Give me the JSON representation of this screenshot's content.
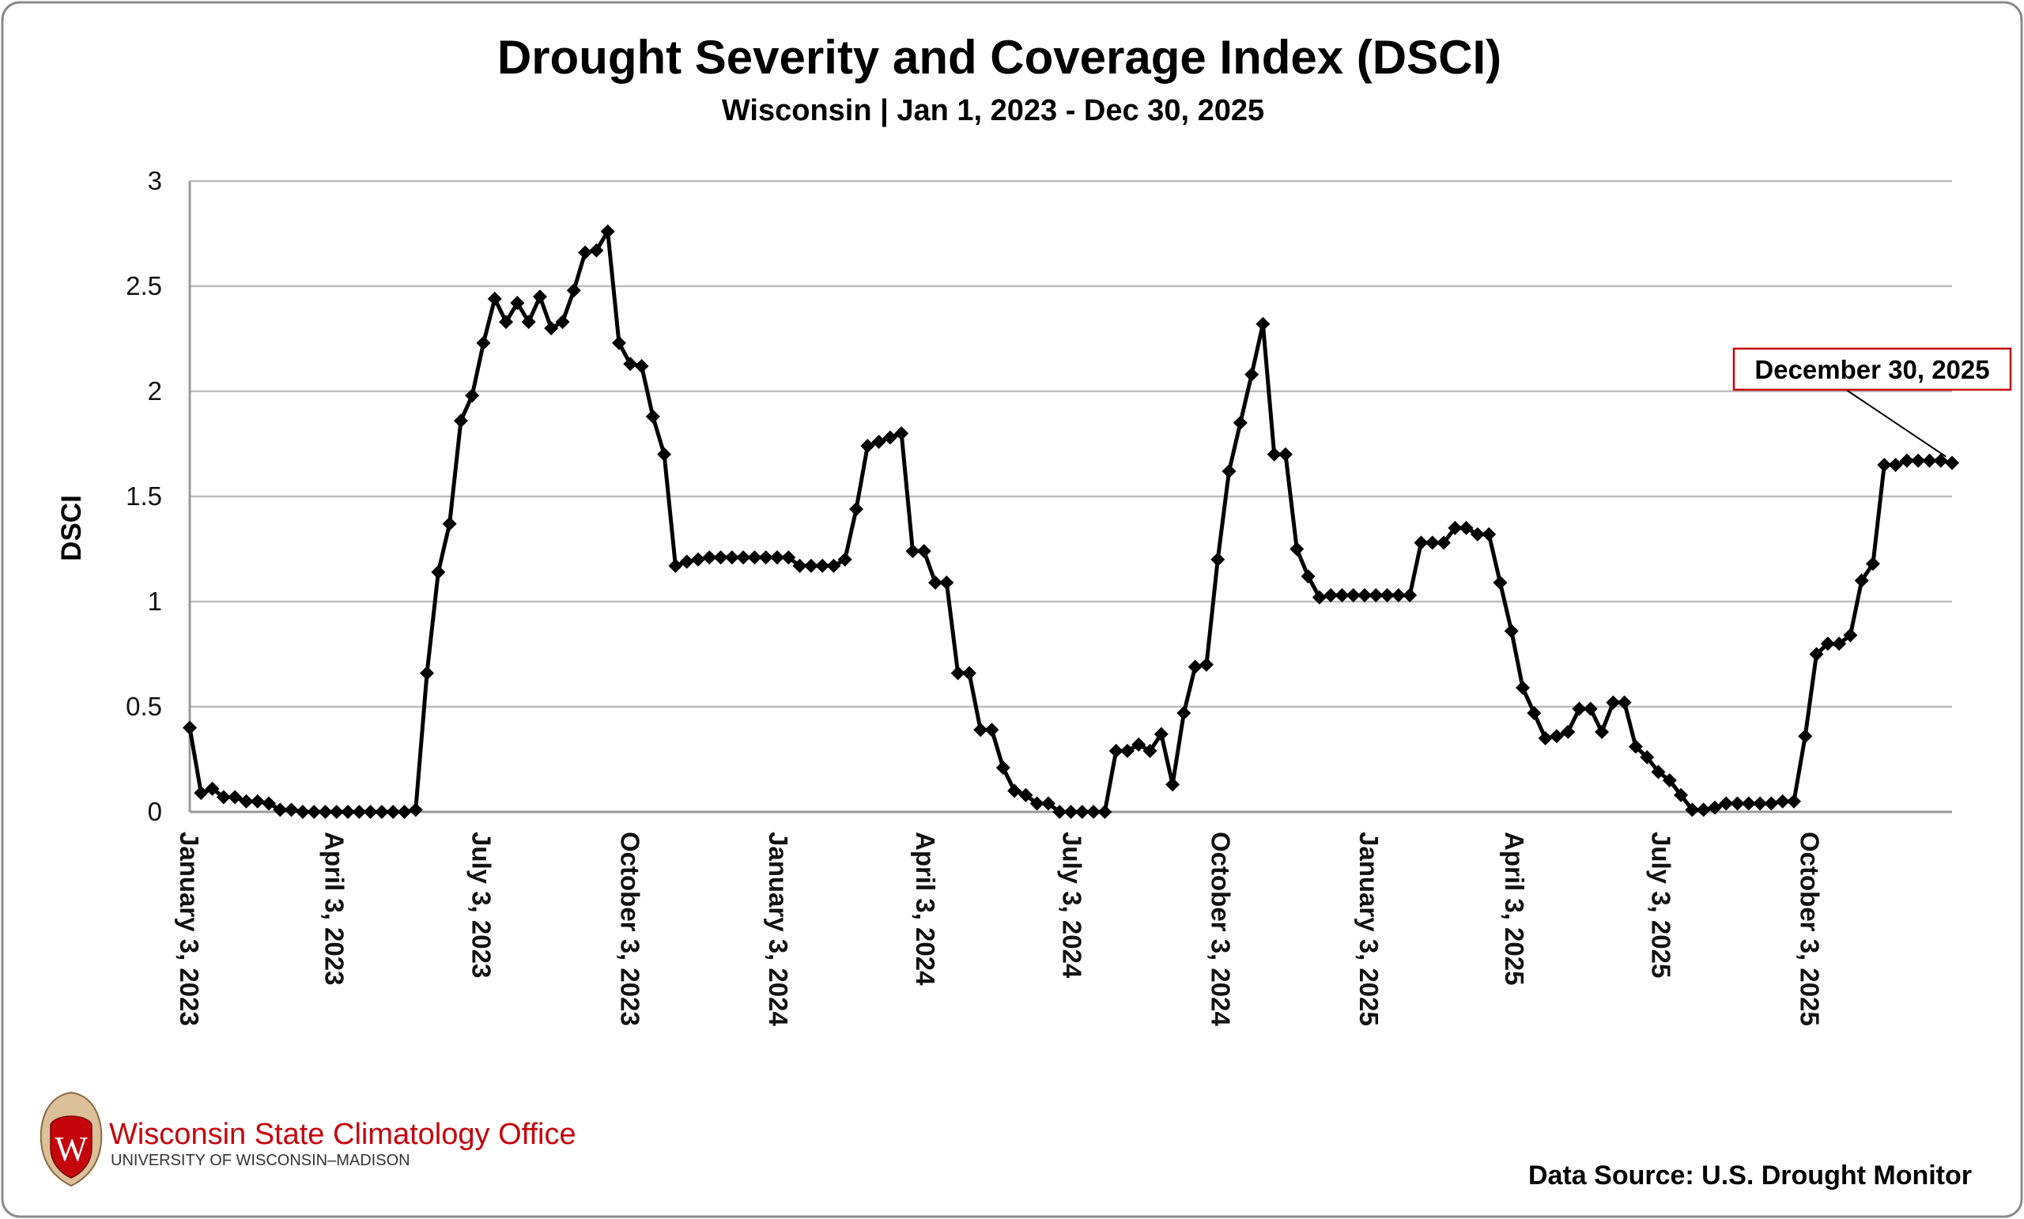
{
  "chart_data": {
    "type": "line",
    "title": "Drought Severity and Coverage Index (DSCI)",
    "subtitle": "Wisconsin | Jan 1, 2023 - Dec 30, 2025",
    "xlabel": "",
    "ylabel": "DSCI",
    "ylim": [
      0,
      3
    ],
    "yticks": [
      "0",
      "0.5",
      "1",
      "1.5",
      "2",
      "2.5",
      "3"
    ],
    "xlim": [
      "2023-01-03",
      "2025-12-30"
    ],
    "xticks": [
      {
        "date": "2023-01-03",
        "label": "January 3, 2023"
      },
      {
        "date": "2023-04-03",
        "label": "April 3, 2023"
      },
      {
        "date": "2023-07-03",
        "label": "July 3, 2023"
      },
      {
        "date": "2023-10-03",
        "label": "October 3, 2023"
      },
      {
        "date": "2024-01-03",
        "label": "January 3, 2024"
      },
      {
        "date": "2024-04-03",
        "label": "April 3, 2024"
      },
      {
        "date": "2024-07-03",
        "label": "July 3, 2024"
      },
      {
        "date": "2024-10-03",
        "label": "October 3, 2024"
      },
      {
        "date": "2025-01-03",
        "label": "January 3, 2025"
      },
      {
        "date": "2025-04-03",
        "label": "April 3, 2025"
      },
      {
        "date": "2025-07-03",
        "label": "July 3, 2025"
      },
      {
        "date": "2025-10-03",
        "label": "October 3, 2025"
      }
    ],
    "grid": true,
    "legend": "none",
    "marker": "diamond",
    "line_color": "#000000",
    "dates": [
      "2023-01-03",
      "2023-01-10",
      "2023-01-17",
      "2023-01-24",
      "2023-01-31",
      "2023-02-07",
      "2023-02-14",
      "2023-02-21",
      "2023-02-28",
      "2023-03-07",
      "2023-03-14",
      "2023-03-21",
      "2023-03-28",
      "2023-04-04",
      "2023-04-11",
      "2023-04-18",
      "2023-04-25",
      "2023-05-02",
      "2023-05-09",
      "2023-05-16",
      "2023-05-23",
      "2023-05-30",
      "2023-06-06",
      "2023-06-13",
      "2023-06-20",
      "2023-06-27",
      "2023-07-04",
      "2023-07-11",
      "2023-07-18",
      "2023-07-25",
      "2023-08-01",
      "2023-08-08",
      "2023-08-15",
      "2023-08-22",
      "2023-08-29",
      "2023-09-05",
      "2023-09-12",
      "2023-09-19",
      "2023-09-26",
      "2023-10-03",
      "2023-10-10",
      "2023-10-17",
      "2023-10-24",
      "2023-10-31",
      "2023-11-07",
      "2023-11-14",
      "2023-11-21",
      "2023-11-28",
      "2023-12-05",
      "2023-12-12",
      "2023-12-19",
      "2023-12-26",
      "2024-01-02",
      "2024-01-09",
      "2024-01-16",
      "2024-01-23",
      "2024-01-30",
      "2024-02-06",
      "2024-02-13",
      "2024-02-20",
      "2024-02-27",
      "2024-03-05",
      "2024-03-12",
      "2024-03-19",
      "2024-03-26",
      "2024-04-02",
      "2024-04-09",
      "2024-04-16",
      "2024-04-23",
      "2024-04-30",
      "2024-05-07",
      "2024-05-14",
      "2024-05-21",
      "2024-05-28",
      "2024-06-04",
      "2024-06-11",
      "2024-06-18",
      "2024-06-25",
      "2024-07-02",
      "2024-07-09",
      "2024-07-16",
      "2024-07-23",
      "2024-07-30",
      "2024-08-06",
      "2024-08-13",
      "2024-08-20",
      "2024-08-27",
      "2024-09-03",
      "2024-09-10",
      "2024-09-17",
      "2024-09-24",
      "2024-10-01",
      "2024-10-08",
      "2024-10-15",
      "2024-10-22",
      "2024-10-29",
      "2024-11-05",
      "2024-11-12",
      "2024-11-19",
      "2024-11-26",
      "2024-12-03",
      "2024-12-10",
      "2024-12-17",
      "2024-12-24",
      "2024-12-31",
      "2025-01-07",
      "2025-01-14",
      "2025-01-21",
      "2025-01-28",
      "2025-02-04",
      "2025-02-11",
      "2025-02-18",
      "2025-02-25",
      "2025-03-04",
      "2025-03-11",
      "2025-03-18",
      "2025-03-25",
      "2025-04-01",
      "2025-04-08",
      "2025-04-15",
      "2025-04-22",
      "2025-04-29",
      "2025-05-06",
      "2025-05-13",
      "2025-05-20",
      "2025-05-27",
      "2025-06-03",
      "2025-06-10",
      "2025-06-17",
      "2025-06-24",
      "2025-07-01",
      "2025-07-08",
      "2025-07-15",
      "2025-07-22",
      "2025-07-29",
      "2025-08-05",
      "2025-08-12",
      "2025-08-19",
      "2025-08-26",
      "2025-09-02",
      "2025-09-09",
      "2025-09-16",
      "2025-09-23",
      "2025-09-30",
      "2025-10-07",
      "2025-10-14",
      "2025-10-21",
      "2025-10-28",
      "2025-11-04",
      "2025-11-11",
      "2025-11-18",
      "2025-11-25",
      "2025-12-02",
      "2025-12-09",
      "2025-12-16",
      "2025-12-23",
      "2025-12-30"
    ],
    "values": [
      0.4,
      0.09,
      0.11,
      0.07,
      0.07,
      0.05,
      0.05,
      0.04,
      0.01,
      0.01,
      0,
      0,
      0,
      0,
      0,
      0,
      0,
      0,
      0,
      0,
      0.01,
      0.66,
      1.14,
      1.37,
      1.86,
      1.98,
      2.23,
      2.44,
      2.33,
      2.42,
      2.33,
      2.45,
      2.3,
      2.33,
      2.48,
      2.66,
      2.67,
      2.76,
      2.23,
      2.13,
      2.12,
      1.88,
      1.7,
      1.17,
      1.19,
      1.2,
      1.21,
      1.21,
      1.21,
      1.21,
      1.21,
      1.21,
      1.21,
      1.21,
      1.17,
      1.17,
      1.17,
      1.17,
      1.2,
      1.44,
      1.74,
      1.76,
      1.78,
      1.8,
      1.24,
      1.24,
      1.09,
      1.09,
      0.66,
      0.66,
      0.39,
      0.39,
      0.21,
      0.1,
      0.08,
      0.04,
      0.04,
      0,
      0,
      0,
      0,
      0,
      0.29,
      0.29,
      0.32,
      0.29,
      0.37,
      0.13,
      0.47,
      0.69,
      0.7,
      1.2,
      1.62,
      1.85,
      2.08,
      2.32,
      1.7,
      1.7,
      1.25,
      1.12,
      1.02,
      1.03,
      1.03,
      1.03,
      1.03,
      1.03,
      1.03,
      1.03,
      1.03,
      1.28,
      1.28,
      1.28,
      1.35,
      1.35,
      1.32,
      1.32,
      1.09,
      0.86,
      0.59,
      0.47,
      0.35,
      0.36,
      0.38,
      0.49,
      0.49,
      0.38,
      0.52,
      0.52,
      0.31,
      0.26,
      0.19,
      0.15,
      0.08,
      0.01,
      0.01,
      0.02,
      0.04,
      0.04,
      0.04,
      0.04,
      0.04,
      0.05,
      0.05,
      0.36,
      0.75,
      0.8,
      0.8,
      0.84,
      1.1,
      1.18,
      1.65,
      1.65,
      1.67,
      1.67,
      1.67,
      1.67,
      1.66
    ],
    "annotations": [
      {
        "date": "2025-12-30",
        "label": "December 30, 2025",
        "border_color": "#c5050c"
      }
    ]
  },
  "footer": {
    "org_name": "Wisconsin State Climatology Office",
    "university": "UNIVERSITY OF WISCONSIN–MADISON",
    "logo_letter": "W",
    "data_source": "Data Source: U.S. Drought Monitor",
    "brand_color": "#c5050c"
  }
}
